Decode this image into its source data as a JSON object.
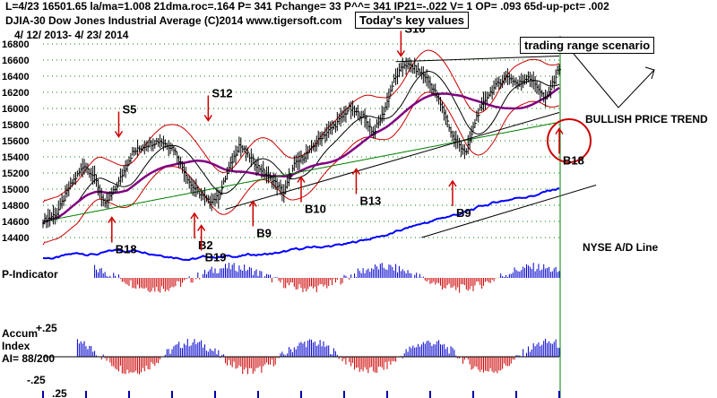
{
  "header": {
    "line1": "L=4/23  16501.65  la/ma=1.008 21dma.roc=.164 P=  341 Pchange=  33 P^^= 341 IP21=-.022 V= 1 OP= .093 65d-up-pct= .002",
    "line2": "DJIA-30  Dow Jones Industrial Average  (C)2014 www.tigersoft.com",
    "line3": "4/ 12/ 2013- 4/ 23/ 2014"
  },
  "boxes": {
    "key_values": "Today's key values",
    "range": "trading range scenario"
  },
  "annotations": {
    "bullish": "BULLISH PRICE TREND",
    "ad_line": "NYSE A/D Line",
    "p_indicator": "P-Indicator",
    "accum_1": "Accum",
    "accum_2": "Index",
    "accum_3": "AI= 88/200",
    "accum_top": "+.25",
    "accum_bot": "-.25",
    "accum_bot2": ".25"
  },
  "colors": {
    "price_bars": "#000000",
    "ma_purple": "#800080",
    "ma_green": "#008000",
    "band_red": "#cc0000",
    "ad_line": "#0000ff",
    "indicator_up": "#0000cc",
    "indicator_down": "#cc0000",
    "signal_red": "#cc0000",
    "grid_green": "#008000"
  },
  "chart_data": {
    "type": "line",
    "title": "DJIA-30 Dow Jones Industrial Average",
    "date_range": "4/12/2013 - 4/23/2014",
    "ylim": [
      14400,
      16800
    ],
    "yticks": [
      16800,
      16600,
      16400,
      16200,
      16000,
      15800,
      15600,
      15400,
      15200,
      15000,
      14800,
      14600,
      14400
    ],
    "close_series": {
      "name": "DJIA close",
      "points": [
        [
          0,
          14600
        ],
        [
          8,
          14700
        ],
        [
          16,
          15050
        ],
        [
          24,
          15300
        ],
        [
          30,
          15150
        ],
        [
          36,
          14800
        ],
        [
          42,
          15000
        ],
        [
          52,
          15450
        ],
        [
          60,
          15550
        ],
        [
          68,
          15600
        ],
        [
          76,
          15500
        ],
        [
          86,
          15050
        ],
        [
          96,
          14850
        ],
        [
          102,
          14900
        ],
        [
          108,
          15250
        ],
        [
          114,
          15550
        ],
        [
          124,
          15300
        ],
        [
          134,
          15100
        ],
        [
          140,
          14950
        ],
        [
          146,
          15300
        ],
        [
          154,
          15450
        ],
        [
          162,
          15650
        ],
        [
          170,
          15800
        ],
        [
          178,
          16000
        ],
        [
          186,
          15900
        ],
        [
          192,
          15700
        ],
        [
          198,
          15950
        ],
        [
          204,
          16350
        ],
        [
          210,
          16550
        ],
        [
          216,
          16500
        ],
        [
          222,
          16400
        ],
        [
          228,
          16200
        ],
        [
          234,
          15900
        ],
        [
          238,
          15650
        ],
        [
          242,
          15550
        ],
        [
          246,
          15450
        ],
        [
          252,
          15900
        ],
        [
          258,
          16150
        ],
        [
          264,
          16300
        ],
        [
          270,
          16400
        ],
        [
          276,
          16300
        ],
        [
          282,
          16400
        ],
        [
          288,
          16250
        ],
        [
          292,
          16100
        ],
        [
          296,
          16300
        ],
        [
          300,
          16501.65
        ]
      ]
    },
    "signals": [
      {
        "label": "S5",
        "type": "sell",
        "day": 44,
        "value": 15650
      },
      {
        "label": "S12",
        "type": "sell",
        "day": 96,
        "value": 15850
      },
      {
        "label": "S16",
        "type": "sell",
        "day": 208,
        "value": 16650
      },
      {
        "label": "B18",
        "type": "buy",
        "day": 40,
        "value": 14650
      },
      {
        "label": "B2",
        "type": "buy",
        "day": 88,
        "value": 14700
      },
      {
        "label": "B19",
        "type": "buy",
        "day": 92,
        "value": 14550
      },
      {
        "label": "B9",
        "type": "buy",
        "day": 122,
        "value": 14850
      },
      {
        "label": "B10",
        "type": "buy",
        "day": 150,
        "value": 15150
      },
      {
        "label": "B13",
        "type": "buy",
        "day": 182,
        "value": 15250
      },
      {
        "label": "B9",
        "type": "buy",
        "day": 238,
        "value": 15100
      },
      {
        "label": "B18",
        "type": "buy",
        "day": 300,
        "value": 15750
      }
    ],
    "grid": true
  }
}
